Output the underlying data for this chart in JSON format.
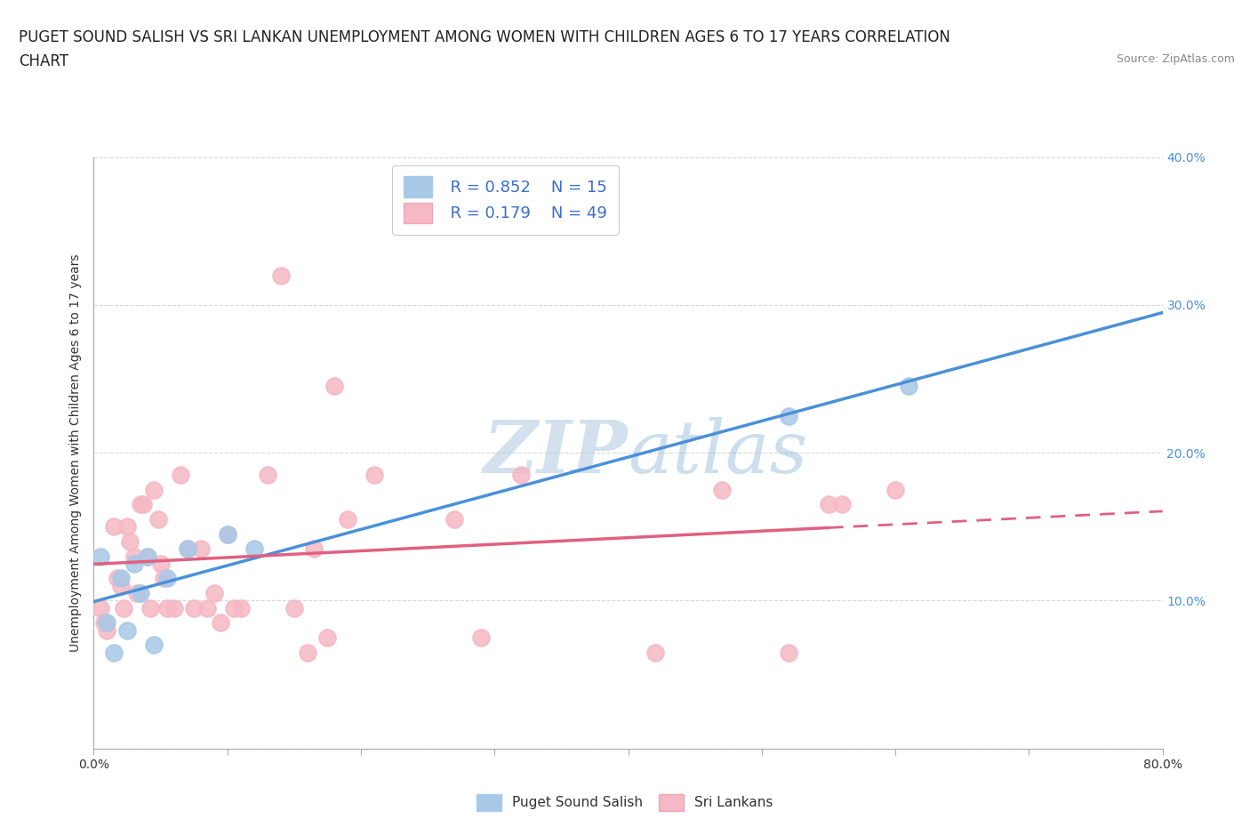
{
  "title_line1": "PUGET SOUND SALISH VS SRI LANKAN UNEMPLOYMENT AMONG WOMEN WITH CHILDREN AGES 6 TO 17 YEARS CORRELATION",
  "title_line2": "CHART",
  "source_text": "Source: ZipAtlas.com",
  "ylabel": "Unemployment Among Women with Children Ages 6 to 17 years",
  "xlim": [
    0.0,
    0.8
  ],
  "ylim": [
    0.0,
    0.4
  ],
  "xticks": [
    0.0,
    0.1,
    0.2,
    0.3,
    0.4,
    0.5,
    0.6,
    0.7,
    0.8
  ],
  "yticks": [
    0.0,
    0.1,
    0.2,
    0.3,
    0.4
  ],
  "blue_scatter_color": "#a8c8e8",
  "blue_line_color": "#4a90d9",
  "pink_scatter_color": "#f5b8c4",
  "pink_line_color": "#e06080",
  "watermark_color": "#c5d8ec",
  "legend_R1": "R = 0.852",
  "legend_N1": "N = 15",
  "legend_R2": "R = 0.179",
  "legend_N2": "N = 49",
  "blue_scatter_x": [
    0.005,
    0.01,
    0.015,
    0.02,
    0.025,
    0.03,
    0.035,
    0.04,
    0.045,
    0.055,
    0.07,
    0.1,
    0.12,
    0.52,
    0.61
  ],
  "blue_scatter_y": [
    0.13,
    0.085,
    0.065,
    0.115,
    0.08,
    0.125,
    0.105,
    0.13,
    0.07,
    0.115,
    0.135,
    0.145,
    0.135,
    0.225,
    0.245
  ],
  "pink_scatter_x": [
    0.005,
    0.008,
    0.01,
    0.015,
    0.018,
    0.02,
    0.022,
    0.025,
    0.027,
    0.03,
    0.032,
    0.035,
    0.037,
    0.04,
    0.042,
    0.045,
    0.048,
    0.05,
    0.052,
    0.055,
    0.06,
    0.065,
    0.07,
    0.075,
    0.08,
    0.085,
    0.09,
    0.095,
    0.1,
    0.105,
    0.11,
    0.13,
    0.14,
    0.15,
    0.16,
    0.165,
    0.175,
    0.18,
    0.19,
    0.21,
    0.27,
    0.29,
    0.32,
    0.42,
    0.47,
    0.52,
    0.55,
    0.56,
    0.6
  ],
  "pink_scatter_y": [
    0.095,
    0.085,
    0.08,
    0.15,
    0.115,
    0.11,
    0.095,
    0.15,
    0.14,
    0.13,
    0.105,
    0.165,
    0.165,
    0.13,
    0.095,
    0.175,
    0.155,
    0.125,
    0.115,
    0.095,
    0.095,
    0.185,
    0.135,
    0.095,
    0.135,
    0.095,
    0.105,
    0.085,
    0.145,
    0.095,
    0.095,
    0.185,
    0.32,
    0.095,
    0.065,
    0.135,
    0.075,
    0.245,
    0.155,
    0.185,
    0.155,
    0.075,
    0.185,
    0.065,
    0.175,
    0.065,
    0.165,
    0.165,
    0.175
  ],
  "grid_color": "#d8d8d8",
  "title_fontsize": 12,
  "label_fontsize": 10,
  "tick_fontsize": 10,
  "legend_fontsize": 13
}
